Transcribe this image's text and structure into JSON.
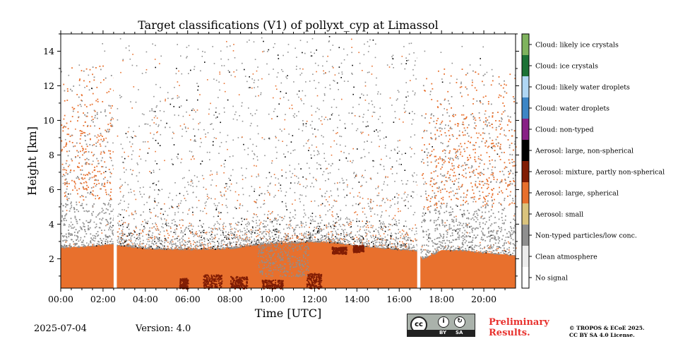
{
  "chart_data": {
    "type": "heatmap",
    "title": "Target classifications (V1) of pollyxt_cyp at Limassol",
    "xlabel": "Time [UTC]",
    "ylabel": "Height [km]",
    "xlim_hours": [
      0,
      21.5
    ],
    "ylim_km": [
      0.3,
      15
    ],
    "x_ticks": [
      "00:00",
      "02:00",
      "04:00",
      "06:00",
      "08:00",
      "10:00",
      "12:00",
      "14:00",
      "16:00",
      "18:00",
      "20:00"
    ],
    "y_ticks": [
      "2",
      "4",
      "6",
      "8",
      "10",
      "12",
      "14"
    ],
    "data_gaps_hours": [
      [
        2.5,
        2.65
      ],
      [
        16.85,
        17.0
      ]
    ],
    "classes": [
      {
        "label": "No signal",
        "color": "#ffffff"
      },
      {
        "label": "Clean atmosphere",
        "color": "#ececec"
      },
      {
        "label": "Non-typed particles/low conc.",
        "color": "#8f8f8f"
      },
      {
        "label": "Aerosol: small",
        "color": "#dac37d"
      },
      {
        "label": "Aerosol: large, spherical",
        "color": "#e8702d"
      },
      {
        "label": "Aerosol: mixture, partly non-spherical",
        "color": "#811d04"
      },
      {
        "label": "Aerosol: large, non-spherical",
        "color": "#000000"
      },
      {
        "label": "Cloud: non-typed",
        "color": "#882086"
      },
      {
        "label": "Cloud: water droplets",
        "color": "#3d86c6"
      },
      {
        "label": "Cloud: likely water droplets",
        "color": "#b0d7f4"
      },
      {
        "label": "Cloud: ice crystals",
        "color": "#1c7236"
      },
      {
        "label": "Cloud: likely ice crystals",
        "color": "#7fb35e"
      }
    ],
    "boundary_layer_top_km": [
      [
        0,
        2.65
      ],
      [
        1,
        2.7
      ],
      [
        2.4,
        2.85
      ],
      [
        2.7,
        2.8
      ],
      [
        4,
        2.6
      ],
      [
        6,
        2.55
      ],
      [
        8,
        2.6
      ],
      [
        9,
        2.8
      ],
      [
        10,
        2.9
      ],
      [
        11,
        2.95
      ],
      [
        12,
        3.0
      ],
      [
        13,
        2.95
      ],
      [
        14,
        2.75
      ],
      [
        15,
        2.65
      ],
      [
        16,
        2.55
      ],
      [
        16.8,
        2.5
      ],
      [
        17.1,
        2.0
      ],
      [
        18,
        2.5
      ],
      [
        19,
        2.5
      ],
      [
        20,
        2.35
      ],
      [
        21.5,
        2.2
      ]
    ]
  },
  "footer": {
    "date": "2025-07-04",
    "version": "Version: 4.0",
    "preliminary_line1": "Preliminary",
    "preliminary_line2": "Results.",
    "copyright_line1": "© TROPOS & ECoE 2025.",
    "copyright_line2": "CC BY SA 4.0 License.",
    "cc_logo_text": "cc",
    "cc_by_label": "BY",
    "cc_sa_label": "SA"
  }
}
